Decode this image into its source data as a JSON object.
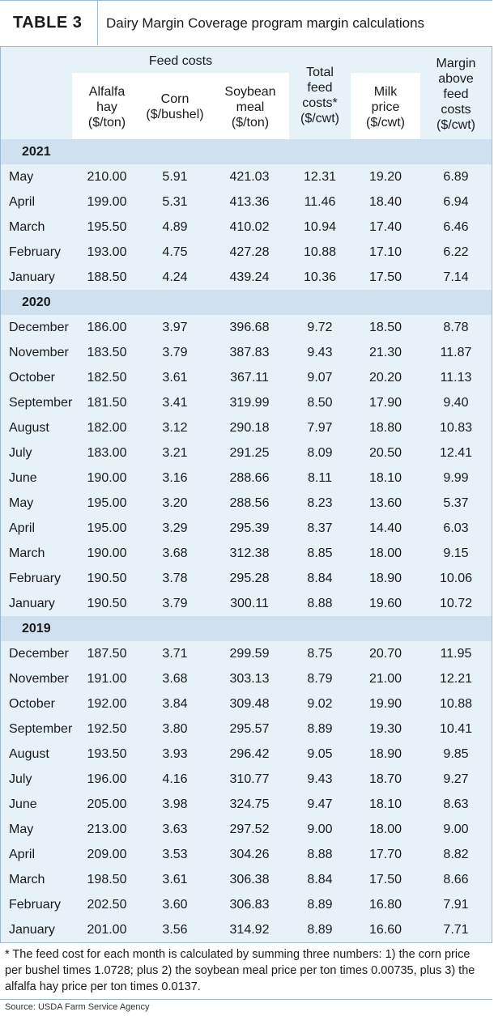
{
  "title_bar": {
    "tag": "TABLE 3",
    "title": "Dairy Margin Coverage program margin calculations"
  },
  "headers": {
    "feed_costs": "Feed costs",
    "alfalfa": "Alfalfa\nhay\n($/ton)",
    "corn": "Corn\n($/bushel)",
    "soybean": "Soybean\nmeal\n($/ton)",
    "total_feed": "Total\nfeed\ncosts*\n($/cwt)",
    "milk": "Milk\nprice\n($/cwt)",
    "margin": "Margin\nabove\nfeed\ncosts\n($/cwt)"
  },
  "sections": [
    {
      "year": "2021",
      "rows": [
        [
          "May",
          "210.00",
          "5.91",
          "421.03",
          "12.31",
          "19.20",
          "6.89"
        ],
        [
          "April",
          "199.00",
          "5.31",
          "413.36",
          "11.46",
          "18.40",
          "6.94"
        ],
        [
          "March",
          "195.50",
          "4.89",
          "410.02",
          "10.94",
          "17.40",
          "6.46"
        ],
        [
          "February",
          "193.00",
          "4.75",
          "427.28",
          "10.88",
          "17.10",
          "6.22"
        ],
        [
          "January",
          "188.50",
          "4.24",
          "439.24",
          "10.36",
          "17.50",
          "7.14"
        ]
      ]
    },
    {
      "year": "2020",
      "rows": [
        [
          "December",
          "186.00",
          "3.97",
          "396.68",
          "9.72",
          "18.50",
          "8.78"
        ],
        [
          "November",
          "183.50",
          "3.79",
          "387.83",
          "9.43",
          "21.30",
          "11.87"
        ],
        [
          "October",
          "182.50",
          "3.61",
          "367.11",
          "9.07",
          "20.20",
          "11.13"
        ],
        [
          "September",
          "181.50",
          "3.41",
          "319.99",
          "8.50",
          "17.90",
          "9.40"
        ],
        [
          "August",
          "182.00",
          "3.12",
          "290.18",
          "7.97",
          "18.80",
          "10.83"
        ],
        [
          "July",
          "183.00",
          "3.21",
          "291.25",
          "8.09",
          "20.50",
          "12.41"
        ],
        [
          "June",
          "190.00",
          "3.16",
          "288.66",
          "8.11",
          "18.10",
          "9.99"
        ],
        [
          "May",
          "195.00",
          "3.20",
          "288.56",
          "8.23",
          "13.60",
          "5.37"
        ],
        [
          "April",
          "195.00",
          "3.29",
          "295.39",
          "8.37",
          "14.40",
          "6.03"
        ],
        [
          "March",
          "190.00",
          "3.68",
          "312.38",
          "8.85",
          "18.00",
          "9.15"
        ],
        [
          "February",
          "190.50",
          "3.78",
          "295.28",
          "8.84",
          "18.90",
          "10.06"
        ],
        [
          "January",
          "190.50",
          "3.79",
          "300.11",
          "8.88",
          "19.60",
          "10.72"
        ]
      ]
    },
    {
      "year": "2019",
      "rows": [
        [
          "December",
          "187.50",
          "3.71",
          "299.59",
          "8.75",
          "20.70",
          "11.95"
        ],
        [
          "November",
          "191.00",
          "3.68",
          "303.13",
          "8.79",
          "21.00",
          "12.21"
        ],
        [
          "October",
          "192.00",
          "3.84",
          "309.48",
          "9.02",
          "19.90",
          "10.88"
        ],
        [
          "September",
          "192.50",
          "3.80",
          "295.57",
          "8.89",
          "19.30",
          "10.41"
        ],
        [
          "August",
          "193.50",
          "3.93",
          "296.42",
          "9.05",
          "18.90",
          "9.85"
        ],
        [
          "July",
          "196.00",
          "4.16",
          "310.77",
          "9.43",
          "18.70",
          "9.27"
        ],
        [
          "June",
          "205.00",
          "3.98",
          "324.75",
          "9.47",
          "18.10",
          "8.63"
        ],
        [
          "May",
          "213.00",
          "3.63",
          "297.52",
          "9.00",
          "18.00",
          "9.00"
        ],
        [
          "April",
          "209.00",
          "3.53",
          "304.26",
          "8.88",
          "17.70",
          "8.82"
        ],
        [
          "March",
          "198.50",
          "3.61",
          "306.38",
          "8.84",
          "17.50",
          "8.66"
        ],
        [
          "February",
          "202.50",
          "3.60",
          "306.83",
          "8.89",
          "16.80",
          "7.91"
        ],
        [
          "January",
          "201.00",
          "3.56",
          "314.92",
          "8.89",
          "16.60",
          "7.71"
        ]
      ]
    }
  ],
  "footnote": "* The feed cost for each month is calculated by summing three numbers: 1) the corn price per bushel times 1.0728; plus 2) the soybean meal price per ton times 0.00735, plus 3) the alfalfa hay price per ton times 0.0137.",
  "source": "Source: USDA Farm Service Agency"
}
